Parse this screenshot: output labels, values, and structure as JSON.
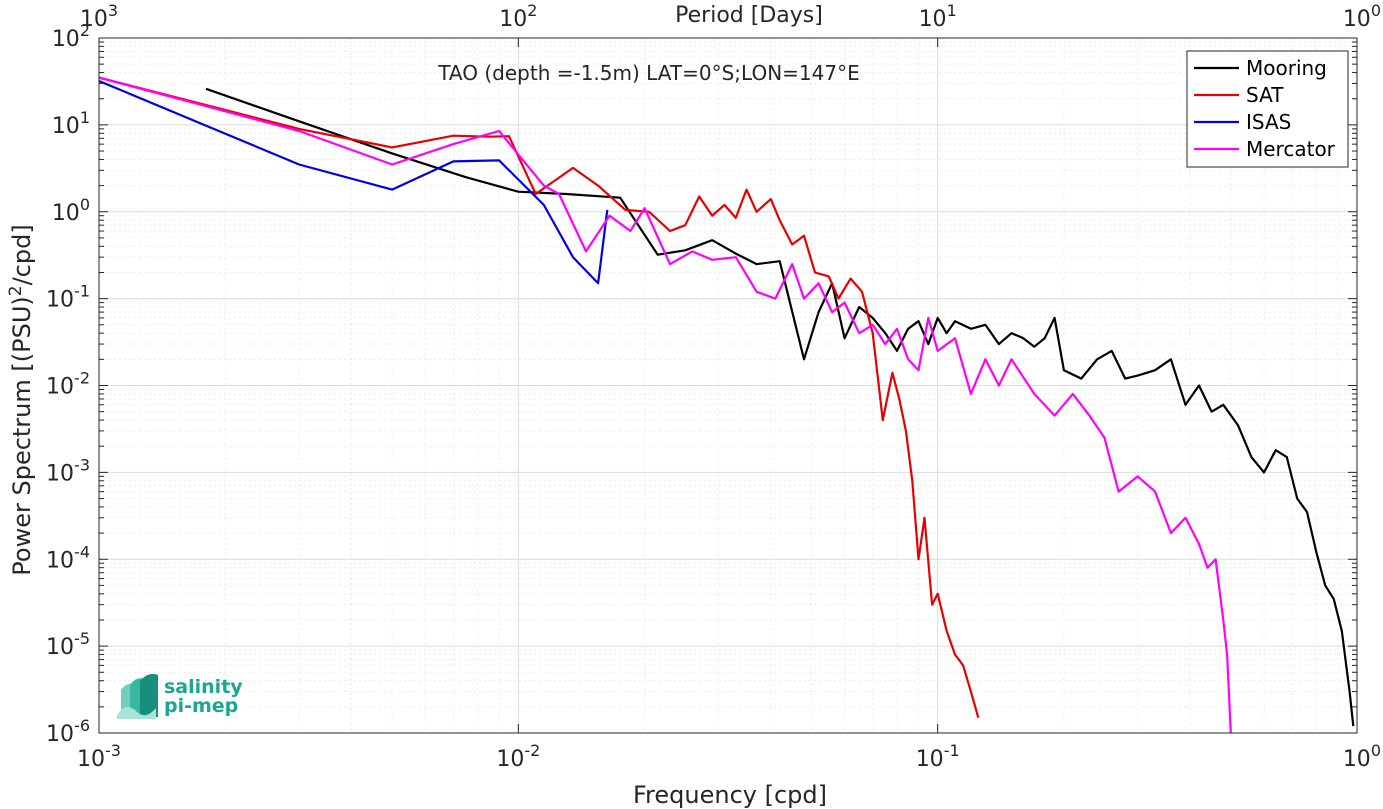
{
  "chart_data": {
    "type": "line",
    "title": "TAO (depth =-1.5m) LAT=0°S;LON=147°E",
    "xlabel": "Frequency [cpd]",
    "ylabel": "Power Spectrum [(PSU)²/cpd]",
    "top_xlabel": "Period [Days]",
    "xscale": "log",
    "yscale": "log",
    "xlim": [
      0.001,
      1
    ],
    "ylim": [
      1e-06,
      100
    ],
    "grid": true,
    "legend_position": "top-right",
    "x_ticks": [
      {
        "base": "10",
        "exp": "-3"
      },
      {
        "base": "10",
        "exp": "-2"
      },
      {
        "base": "10",
        "exp": "-1"
      },
      {
        "base": "10",
        "exp": "0"
      }
    ],
    "top_ticks": [
      {
        "base": "10",
        "exp": "3"
      },
      {
        "base": "10",
        "exp": "2"
      },
      {
        "base": "10",
        "exp": "1"
      },
      {
        "base": "10",
        "exp": "0"
      }
    ],
    "y_ticks": [
      {
        "base": "10",
        "exp": "-6"
      },
      {
        "base": "10",
        "exp": "-5"
      },
      {
        "base": "10",
        "exp": "-4"
      },
      {
        "base": "10",
        "exp": "-3"
      },
      {
        "base": "10",
        "exp": "-2"
      },
      {
        "base": "10",
        "exp": "-1"
      },
      {
        "base": "10",
        "exp": "0"
      },
      {
        "base": "10",
        "exp": "1"
      },
      {
        "base": "10",
        "exp": "2"
      }
    ],
    "series": [
      {
        "name": "Mooring",
        "color": "#000000",
        "x": [
          0.0018,
          0.003,
          0.005,
          0.0075,
          0.01,
          0.013,
          0.0175,
          0.0215,
          0.025,
          0.029,
          0.033,
          0.037,
          0.042,
          0.048,
          0.052,
          0.056,
          0.06,
          0.065,
          0.07,
          0.075,
          0.08,
          0.085,
          0.09,
          0.095,
          0.1,
          0.105,
          0.11,
          0.12,
          0.13,
          0.14,
          0.15,
          0.16,
          0.17,
          0.18,
          0.19,
          0.2,
          0.22,
          0.24,
          0.26,
          0.28,
          0.3,
          0.33,
          0.36,
          0.39,
          0.42,
          0.45,
          0.48,
          0.52,
          0.56,
          0.6,
          0.64,
          0.68,
          0.72,
          0.76,
          0.8,
          0.84,
          0.88,
          0.92,
          0.96,
          0.98
        ],
        "y": [
          26,
          11,
          4.7,
          2.5,
          1.7,
          1.6,
          1.45,
          0.32,
          0.36,
          0.47,
          0.33,
          0.25,
          0.27,
          0.02,
          0.07,
          0.15,
          0.035,
          0.08,
          0.06,
          0.04,
          0.025,
          0.045,
          0.055,
          0.03,
          0.06,
          0.04,
          0.055,
          0.045,
          0.05,
          0.03,
          0.04,
          0.035,
          0.028,
          0.035,
          0.06,
          0.015,
          0.012,
          0.02,
          0.025,
          0.012,
          0.013,
          0.015,
          0.02,
          0.006,
          0.01,
          0.005,
          0.006,
          0.0035,
          0.0015,
          0.001,
          0.0018,
          0.0015,
          0.0005,
          0.00035,
          0.00012,
          5e-05,
          3.5e-05,
          1.5e-05,
          3e-06,
          1.2e-06
        ]
      },
      {
        "name": "SAT",
        "color": "#e60000",
        "x": [
          0.001,
          0.003,
          0.005,
          0.007,
          0.0085,
          0.0095,
          0.011,
          0.0135,
          0.0155,
          0.018,
          0.0205,
          0.023,
          0.025,
          0.027,
          0.029,
          0.031,
          0.033,
          0.035,
          0.037,
          0.04,
          0.042,
          0.045,
          0.048,
          0.051,
          0.055,
          0.058,
          0.062,
          0.066,
          0.07,
          0.074,
          0.078,
          0.081,
          0.084,
          0.087,
          0.09,
          0.093,
          0.097,
          0.1,
          0.105,
          0.11,
          0.115,
          0.12,
          0.125
        ],
        "y": [
          35,
          9,
          5.5,
          7.5,
          7.3,
          7.4,
          1.6,
          3.2,
          2,
          1.05,
          1,
          0.6,
          0.7,
          1.5,
          0.9,
          1.2,
          0.85,
          1.8,
          1,
          1.4,
          0.8,
          0.42,
          0.53,
          0.2,
          0.18,
          0.1,
          0.17,
          0.12,
          0.04,
          0.004,
          0.014,
          0.007,
          0.003,
          0.0008,
          0.0001,
          0.0003,
          3e-05,
          4e-05,
          1.5e-05,
          8e-06,
          6e-06,
          3e-06,
          1.5e-06
        ]
      },
      {
        "name": "ISAS",
        "color": "#0000e6",
        "x": [
          0.001,
          0.003,
          0.005,
          0.007,
          0.009,
          0.0115,
          0.0135,
          0.0155,
          0.0163
        ],
        "y": [
          32,
          3.5,
          1.8,
          3.8,
          3.9,
          1.2,
          0.3,
          0.15,
          1.05
        ]
      },
      {
        "name": "Mercator",
        "color": "#ff00ff",
        "x": [
          0.001,
          0.003,
          0.005,
          0.007,
          0.009,
          0.0115,
          0.0125,
          0.0145,
          0.0165,
          0.0185,
          0.02,
          0.023,
          0.026,
          0.029,
          0.033,
          0.037,
          0.041,
          0.045,
          0.048,
          0.052,
          0.056,
          0.06,
          0.065,
          0.07,
          0.075,
          0.08,
          0.085,
          0.09,
          0.095,
          0.1,
          0.11,
          0.12,
          0.13,
          0.14,
          0.15,
          0.17,
          0.19,
          0.21,
          0.23,
          0.25,
          0.27,
          0.3,
          0.33,
          0.36,
          0.39,
          0.42,
          0.44,
          0.46,
          0.48,
          0.49,
          0.5
        ],
        "y": [
          35,
          8.5,
          3.5,
          6,
          8.5,
          2,
          1.6,
          0.35,
          0.9,
          0.6,
          1.1,
          0.25,
          0.35,
          0.28,
          0.3,
          0.12,
          0.1,
          0.25,
          0.1,
          0.15,
          0.07,
          0.09,
          0.04,
          0.05,
          0.03,
          0.045,
          0.02,
          0.015,
          0.06,
          0.025,
          0.035,
          0.008,
          0.02,
          0.01,
          0.02,
          0.008,
          0.0045,
          0.008,
          0.0045,
          0.0025,
          0.0006,
          0.0009,
          0.0006,
          0.0002,
          0.0003,
          0.00015,
          8e-05,
          0.0001,
          2e-05,
          8e-06,
          1e-06
        ]
      }
    ]
  },
  "logo": {
    "line1": "salinity",
    "line2": "pi-mep",
    "color": "#1aa68f"
  }
}
